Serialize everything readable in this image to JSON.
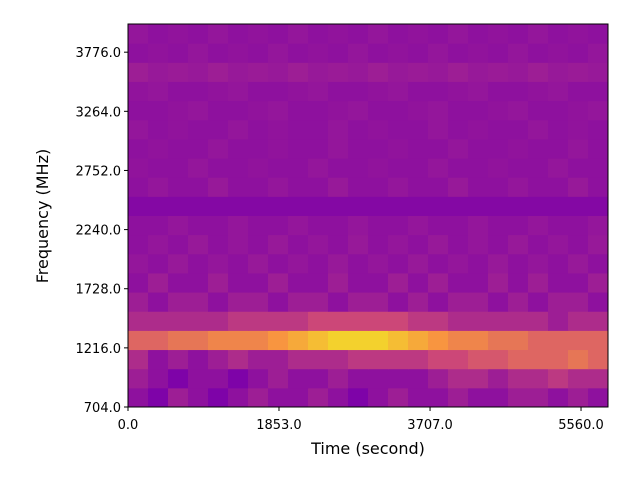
{
  "chart_data": {
    "type": "heatmap",
    "xlabel": "Time (second)",
    "ylabel": "Frequency (MHz)",
    "colormap": "plasma",
    "xlim": [
      0,
      5891
    ],
    "ylim": [
      704,
      4020
    ],
    "xticks": [
      {
        "value": 0,
        "label": "0.0"
      },
      {
        "value": 1853,
        "label": "1853.0"
      },
      {
        "value": 3707,
        "label": "3707.0"
      },
      {
        "value": 5560,
        "label": "5560.0"
      }
    ],
    "yticks": [
      {
        "value": 704,
        "label": "704.0"
      },
      {
        "value": 1216,
        "label": "1216.0"
      },
      {
        "value": 1728,
        "label": "1728.0"
      },
      {
        "value": 2240,
        "label": "2240.0"
      },
      {
        "value": 2752,
        "label": "2752.0"
      },
      {
        "value": 3264,
        "label": "3264.0"
      },
      {
        "value": 3776,
        "label": "3776.0"
      }
    ],
    "z": [
      [
        0.3,
        0.25,
        0.35,
        0.3,
        0.25,
        0.3,
        0.35,
        0.3,
        0.3,
        0.35,
        0.3,
        0.25,
        0.3,
        0.35,
        0.3,
        0.3,
        0.35,
        0.3,
        0.3,
        0.35,
        0.35,
        0.3,
        0.35,
        0.3
      ],
      [
        0.35,
        0.3,
        0.25,
        0.3,
        0.3,
        0.25,
        0.3,
        0.35,
        0.3,
        0.3,
        0.35,
        0.3,
        0.3,
        0.3,
        0.3,
        0.35,
        0.4,
        0.4,
        0.35,
        0.4,
        0.4,
        0.45,
        0.4,
        0.4
      ],
      [
        0.4,
        0.3,
        0.35,
        0.3,
        0.35,
        0.4,
        0.35,
        0.35,
        0.4,
        0.4,
        0.4,
        0.45,
        0.45,
        0.45,
        0.45,
        0.5,
        0.5,
        0.55,
        0.55,
        0.6,
        0.6,
        0.6,
        0.65,
        0.6
      ],
      [
        0.6,
        0.6,
        0.65,
        0.65,
        0.7,
        0.7,
        0.7,
        0.75,
        0.8,
        0.85,
        0.9,
        0.9,
        0.9,
        0.85,
        0.8,
        0.75,
        0.7,
        0.7,
        0.65,
        0.65,
        0.6,
        0.6,
        0.6,
        0.6
      ],
      [
        0.4,
        0.4,
        0.4,
        0.4,
        0.4,
        0.45,
        0.45,
        0.45,
        0.45,
        0.5,
        0.5,
        0.5,
        0.5,
        0.5,
        0.45,
        0.45,
        0.4,
        0.4,
        0.4,
        0.4,
        0.4,
        0.35,
        0.4,
        0.4
      ],
      [
        0.35,
        0.3,
        0.35,
        0.35,
        0.3,
        0.35,
        0.35,
        0.3,
        0.35,
        0.35,
        0.3,
        0.35,
        0.35,
        0.3,
        0.35,
        0.3,
        0.35,
        0.35,
        0.3,
        0.35,
        0.3,
        0.35,
        0.35,
        0.3
      ],
      [
        0.3,
        0.35,
        0.3,
        0.3,
        0.35,
        0.3,
        0.3,
        0.35,
        0.3,
        0.3,
        0.35,
        0.3,
        0.3,
        0.35,
        0.3,
        0.35,
        0.3,
        0.3,
        0.35,
        0.3,
        0.35,
        0.3,
        0.3,
        0.35
      ],
      [
        0.32,
        0.3,
        0.33,
        0.3,
        0.32,
        0.3,
        0.33,
        0.3,
        0.32,
        0.3,
        0.33,
        0.3,
        0.32,
        0.3,
        0.33,
        0.3,
        0.32,
        0.3,
        0.33,
        0.3,
        0.32,
        0.3,
        0.33,
        0.3
      ],
      [
        0.3,
        0.32,
        0.3,
        0.33,
        0.3,
        0.32,
        0.3,
        0.33,
        0.3,
        0.32,
        0.3,
        0.33,
        0.3,
        0.32,
        0.3,
        0.33,
        0.3,
        0.32,
        0.3,
        0.33,
        0.3,
        0.32,
        0.3,
        0.33
      ],
      [
        0.3,
        0.3,
        0.32,
        0.3,
        0.3,
        0.32,
        0.3,
        0.3,
        0.32,
        0.3,
        0.3,
        0.32,
        0.3,
        0.3,
        0.32,
        0.3,
        0.3,
        0.32,
        0.3,
        0.3,
        0.32,
        0.3,
        0.3,
        0.32
      ],
      [
        0.27,
        0.27,
        0.27,
        0.27,
        0.27,
        0.27,
        0.27,
        0.27,
        0.27,
        0.27,
        0.27,
        0.27,
        0.27,
        0.27,
        0.27,
        0.27,
        0.27,
        0.27,
        0.27,
        0.27,
        0.27,
        0.27,
        0.27,
        0.27
      ],
      [
        0.3,
        0.32,
        0.3,
        0.3,
        0.33,
        0.3,
        0.3,
        0.32,
        0.3,
        0.3,
        0.33,
        0.3,
        0.3,
        0.32,
        0.3,
        0.3,
        0.33,
        0.3,
        0.3,
        0.32,
        0.3,
        0.3,
        0.33,
        0.3
      ],
      [
        0.31,
        0.3,
        0.3,
        0.32,
        0.3,
        0.3,
        0.31,
        0.3,
        0.3,
        0.32,
        0.3,
        0.3,
        0.31,
        0.3,
        0.3,
        0.32,
        0.3,
        0.3,
        0.31,
        0.3,
        0.3,
        0.32,
        0.3,
        0.3
      ],
      [
        0.3,
        0.31,
        0.3,
        0.3,
        0.32,
        0.3,
        0.3,
        0.31,
        0.3,
        0.3,
        0.32,
        0.3,
        0.3,
        0.31,
        0.3,
        0.3,
        0.32,
        0.3,
        0.3,
        0.31,
        0.3,
        0.3,
        0.32,
        0.3
      ],
      [
        0.32,
        0.3,
        0.31,
        0.3,
        0.3,
        0.32,
        0.3,
        0.31,
        0.3,
        0.3,
        0.32,
        0.3,
        0.31,
        0.3,
        0.3,
        0.32,
        0.3,
        0.31,
        0.3,
        0.3,
        0.32,
        0.3,
        0.31,
        0.3
      ],
      [
        0.3,
        0.3,
        0.31,
        0.32,
        0.3,
        0.3,
        0.31,
        0.32,
        0.3,
        0.3,
        0.31,
        0.32,
        0.3,
        0.3,
        0.31,
        0.32,
        0.3,
        0.3,
        0.31,
        0.32,
        0.3,
        0.3,
        0.31,
        0.32
      ],
      [
        0.31,
        0.32,
        0.3,
        0.3,
        0.31,
        0.32,
        0.3,
        0.3,
        0.31,
        0.32,
        0.3,
        0.3,
        0.31,
        0.32,
        0.3,
        0.3,
        0.31,
        0.32,
        0.3,
        0.3,
        0.31,
        0.32,
        0.3,
        0.3
      ],
      [
        0.35,
        0.33,
        0.34,
        0.33,
        0.35,
        0.33,
        0.34,
        0.33,
        0.35,
        0.33,
        0.34,
        0.33,
        0.35,
        0.33,
        0.34,
        0.33,
        0.35,
        0.33,
        0.34,
        0.33,
        0.35,
        0.33,
        0.34,
        0.33
      ],
      [
        0.3,
        0.31,
        0.3,
        0.32,
        0.3,
        0.31,
        0.3,
        0.32,
        0.3,
        0.31,
        0.3,
        0.32,
        0.3,
        0.31,
        0.3,
        0.32,
        0.3,
        0.31,
        0.3,
        0.32,
        0.3,
        0.31,
        0.3,
        0.32
      ],
      [
        0.32,
        0.3,
        0.31,
        0.3,
        0.32,
        0.3,
        0.31,
        0.3,
        0.32,
        0.3,
        0.31,
        0.3,
        0.32,
        0.3,
        0.31,
        0.3,
        0.32,
        0.3,
        0.31,
        0.3,
        0.32,
        0.3,
        0.31,
        0.3
      ]
    ]
  }
}
